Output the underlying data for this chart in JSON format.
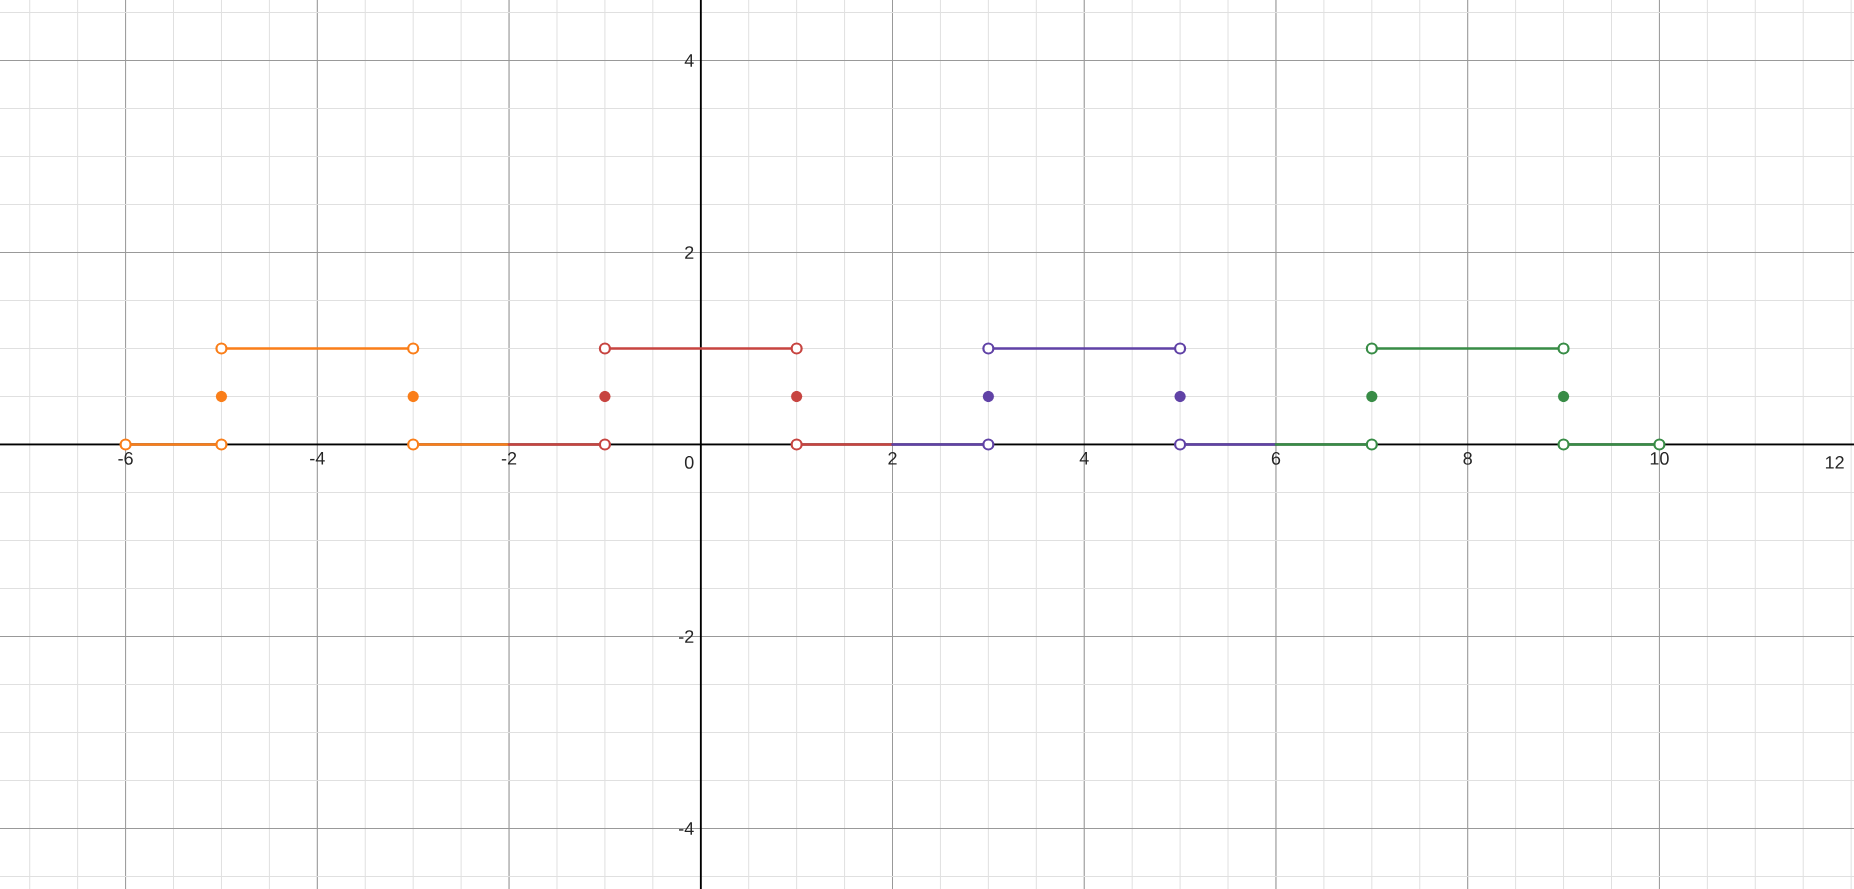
{
  "chart_data": {
    "type": "line",
    "xlim": [
      -7.31,
      12.03
    ],
    "ylim": [
      -4.63,
      4.63
    ],
    "xticks": [
      -6,
      -4,
      -2,
      0,
      2,
      4,
      6,
      8,
      10,
      12
    ],
    "yticks": [
      -4,
      -2,
      2,
      4
    ],
    "grid": true,
    "series": [
      {
        "marker": "none",
        "color": "#fa7e19",
        "x": [
          -3,
          -2
        ],
        "values": [
          0,
          0
        ]
      },
      {
        "marker": "none",
        "color": "#c74440",
        "x": [
          -2,
          -1
        ],
        "values": [
          0,
          0
        ]
      },
      {
        "marker": "none",
        "color": "#c74440",
        "x": [
          1,
          2
        ],
        "values": [
          0,
          0
        ]
      },
      {
        "marker": "none",
        "color": "#6042a6",
        "x": [
          2,
          3
        ],
        "values": [
          0,
          0
        ]
      },
      {
        "marker": "none",
        "color": "#6042a6",
        "x": [
          5,
          6
        ],
        "values": [
          0,
          0
        ]
      },
      {
        "marker": "none",
        "color": "#388c46",
        "x": [
          6,
          7
        ],
        "values": [
          0,
          0
        ]
      },
      {
        "marker": "circle",
        "color": "#fa7e19",
        "x": [
          -6,
          -5
        ],
        "values": [
          0,
          0
        ]
      },
      {
        "marker": "circle",
        "color": "#fa7e19",
        "x": [
          -5,
          -3
        ],
        "values": [
          1,
          1
        ]
      },
      {
        "marker": "circle",
        "color": "#c74440",
        "x": [
          -1,
          1
        ],
        "values": [
          1,
          1
        ]
      },
      {
        "marker": "circle",
        "color": "#6042a6",
        "x": [
          3,
          5
        ],
        "values": [
          1,
          1
        ]
      },
      {
        "marker": "circle",
        "color": "#388c46",
        "x": [
          7,
          9
        ],
        "values": [
          1,
          1
        ]
      },
      {
        "marker": "circle",
        "color": "#388c46",
        "x": [
          9,
          10
        ],
        "values": [
          0,
          0
        ]
      },
      {
        "marker": "circle",
        "color": "#fa7e19",
        "x": [
          -3
        ],
        "values": [
          0
        ]
      },
      {
        "marker": "circle",
        "color": "#c74440",
        "x": [
          -1
        ],
        "values": [
          0
        ]
      },
      {
        "marker": "circle",
        "color": "#c74440",
        "x": [
          1
        ],
        "values": [
          0
        ]
      },
      {
        "marker": "circle",
        "color": "#6042a6",
        "x": [
          3
        ],
        "values": [
          0
        ]
      },
      {
        "marker": "circle",
        "color": "#6042a6",
        "x": [
          5
        ],
        "values": [
          0
        ]
      },
      {
        "marker": "circle",
        "color": "#388c46",
        "x": [
          7
        ],
        "values": [
          0
        ]
      },
      {
        "type": "scatter",
        "marker": "circle",
        "color": "#fa7e19",
        "x": [
          -5,
          -3
        ],
        "values": [
          0.5,
          0.5
        ]
      },
      {
        "type": "scatter",
        "marker": "circle",
        "color": "#c74440",
        "x": [
          -1,
          1
        ],
        "values": [
          0.5,
          0.5
        ]
      },
      {
        "type": "scatter",
        "marker": "circle",
        "color": "#6042a6",
        "x": [
          3,
          5
        ],
        "values": [
          0.5,
          0.5
        ]
      },
      {
        "type": "scatter",
        "marker": "circle",
        "color": "#388c46",
        "x": [
          7,
          9
        ],
        "values": [
          0.5,
          0.5
        ]
      }
    ]
  }
}
